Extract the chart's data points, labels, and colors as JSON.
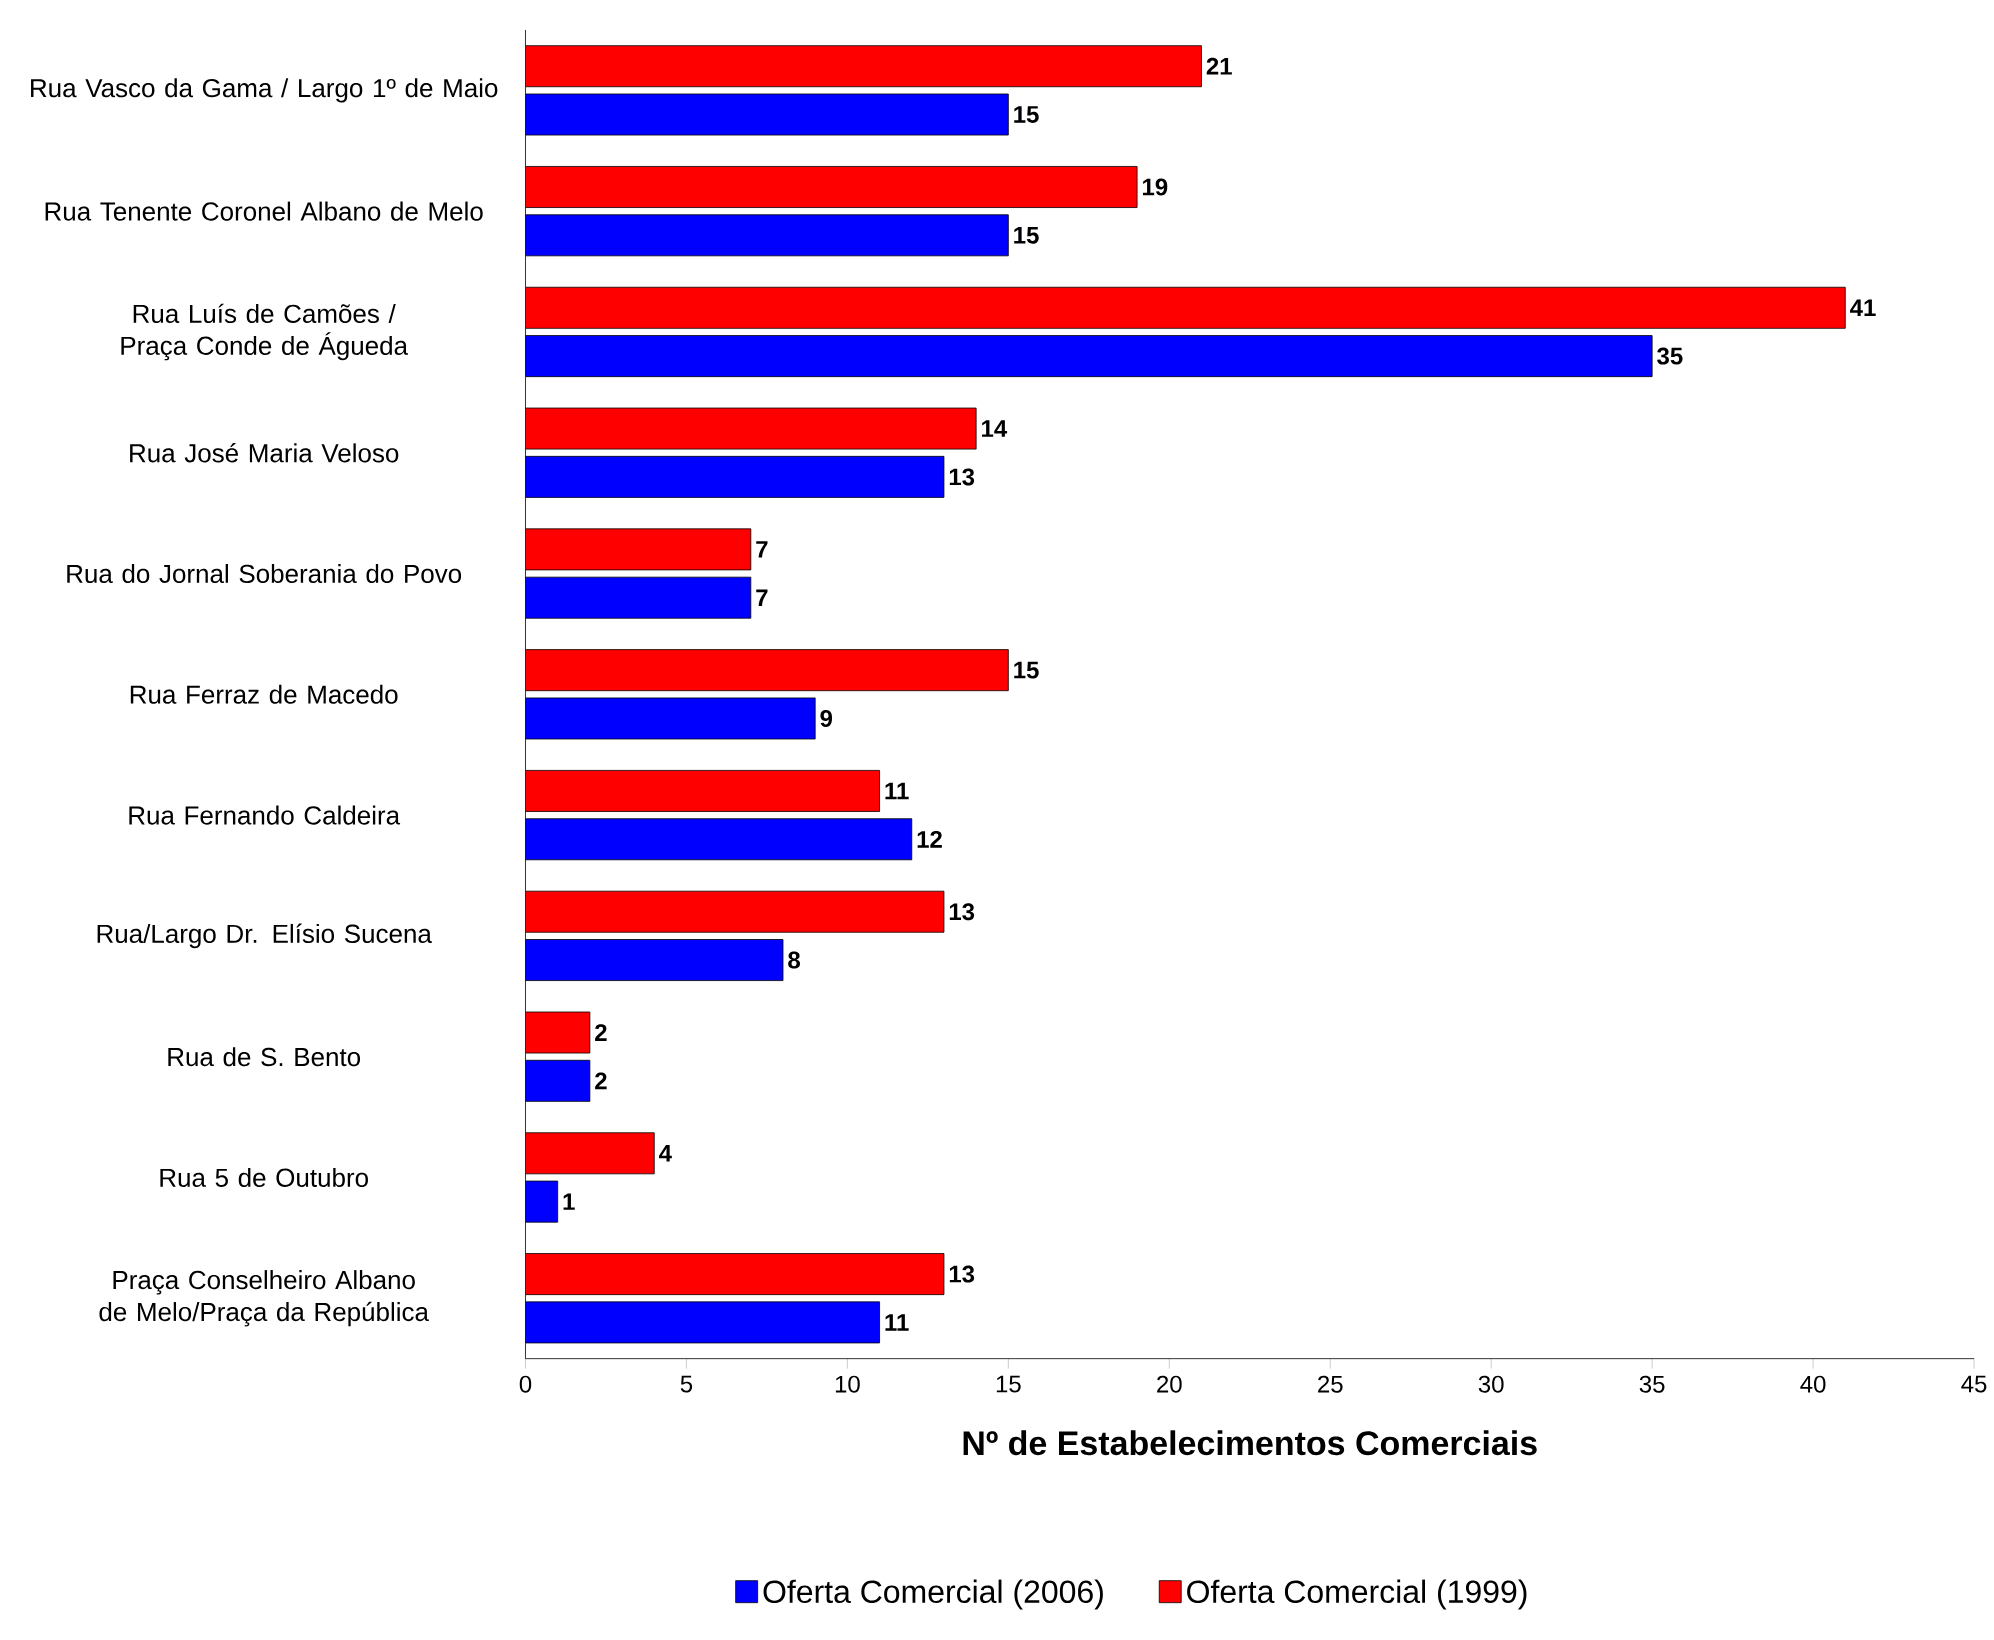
{
  "chart_data": {
    "type": "bar",
    "orientation": "horizontal",
    "xlabel": "Nº de Estabelecimentos Comerciais",
    "categories": [
      "Rua Vasco da Gama / Largo 1º de Maio",
      "Rua Tenente Coronel Albano de Melo",
      "Rua Luís de Camões / Praça Conde de Águeda",
      "Rua José Maria Veloso",
      "Rua do Jornal Soberania do Povo",
      "Rua Ferraz de Macedo",
      "Rua Fernando Caldeira",
      "Rua/Largo Dr. Elísio Sucena",
      "Rua de S. Bento",
      "Rua 5 de Outubro",
      "Praça Conselheiro Albano de Melo/Praça da República"
    ],
    "series": [
      {
        "name": "Oferta Comercial (2006)",
        "color": "#0000ff",
        "values": [
          15,
          15,
          35,
          13,
          7,
          9,
          12,
          8,
          2,
          1,
          11
        ]
      },
      {
        "name": "Oferta Comercial (1999)",
        "color": "#ff0000",
        "values": [
          21,
          19,
          41,
          14,
          7,
          15,
          11,
          13,
          2,
          4,
          13
        ]
      }
    ],
    "xlim": [
      0,
      45
    ],
    "xticks": [
      0,
      5,
      10,
      15,
      20,
      25,
      30,
      35,
      40,
      45
    ],
    "data_labels": true,
    "legend": "bottom"
  }
}
